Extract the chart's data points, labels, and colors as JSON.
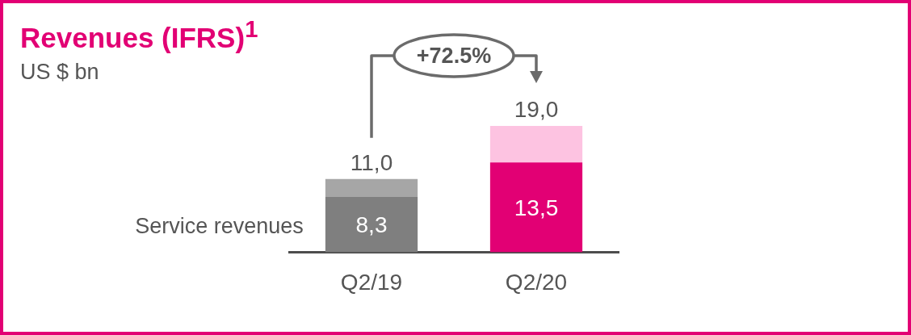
{
  "chart_data": {
    "type": "bar",
    "title": "Revenues (IFRS)$^{1}$",
    "subtitle": "US $ bn",
    "categories": [
      "Q2/19",
      "Q2/20"
    ],
    "stacked": true,
    "series": [
      {
        "name": "Service revenues",
        "colors": [
          "#7f7f7f",
          "#e20074"
        ],
        "values": [
          8.3,
          13.5
        ],
        "value_labels": [
          "8,3",
          "13,5"
        ]
      },
      {
        "colors": [
          "#a6a6a6",
          "#fdc3e1"
        ],
        "values": [
          2.7,
          5.5
        ]
      }
    ],
    "totals": [
      "11,0",
      "19,0"
    ],
    "annotations": [
      "+72.5%"
    ]
  }
}
